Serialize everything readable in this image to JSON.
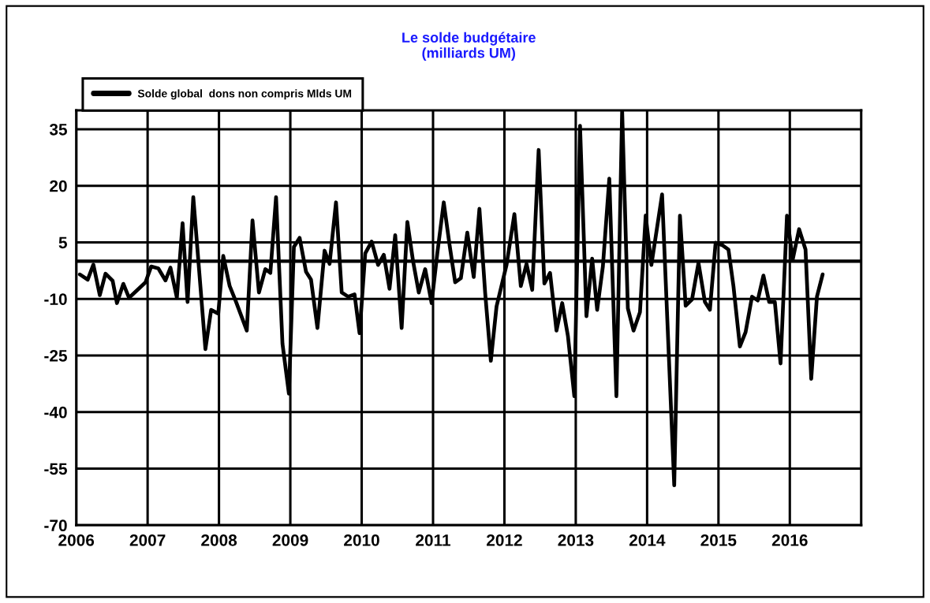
{
  "chart_data": {
    "type": "line",
    "title": "Le solde budgétaire\n(milliards UM)",
    "x": [
      2006.05,
      2006.16,
      2006.24,
      2006.33,
      2006.41,
      2006.51,
      2006.57,
      2006.66,
      2006.74,
      2006.97,
      2007.05,
      2007.15,
      2007.25,
      2007.32,
      2007.41,
      2007.49,
      2007.56,
      2007.64,
      2007.81,
      2007.89,
      2007.99,
      2008.06,
      2008.15,
      2008.24,
      2008.39,
      2008.47,
      2008.56,
      2008.65,
      2008.72,
      2008.8,
      2008.89,
      2008.98,
      2009.05,
      2009.13,
      2009.22,
      2009.29,
      2009.38,
      2009.48,
      2009.55,
      2009.64,
      2009.72,
      2009.81,
      2009.9,
      2009.97,
      2010.05,
      2010.14,
      2010.23,
      2010.31,
      2010.39,
      2010.47,
      2010.56,
      2010.64,
      2010.72,
      2010.8,
      2010.89,
      2010.98,
      2011.06,
      2011.15,
      2011.23,
      2011.31,
      2011.39,
      2011.48,
      2011.57,
      2011.65,
      2011.73,
      2011.81,
      2011.89,
      2012.03,
      2012.14,
      2012.23,
      2012.31,
      2012.39,
      2012.48,
      2012.56,
      2012.64,
      2012.73,
      2012.81,
      2012.89,
      2012.98,
      2013.06,
      2013.15,
      2013.23,
      2013.3,
      2013.38,
      2013.47,
      2013.57,
      2013.65,
      2013.73,
      2013.81,
      2013.9,
      2013.98,
      2014.06,
      2014.21,
      2014.38,
      2014.46,
      2014.54,
      2014.63,
      2014.72,
      2014.81,
      2014.88,
      2014.96,
      2015.06,
      2015.14,
      2015.21,
      2015.3,
      2015.38,
      2015.47,
      2015.55,
      2015.63,
      2015.71,
      2015.79,
      2015.87,
      2015.96,
      2016.04,
      2016.13,
      2016.22,
      2016.3,
      2016.38,
      2016.46
    ],
    "series": [
      {
        "name": "Solde global  dons non compris Mlds UM",
        "color": "#000000",
        "values": [
          -3.5,
          -4.9,
          -0.9,
          -9.0,
          -3.3,
          -5.2,
          -11.1,
          -6.0,
          -9.7,
          -5.6,
          -1.4,
          -1.9,
          -5.1,
          -1.7,
          -9.7,
          10.1,
          -10.8,
          17,
          -23.3,
          -12.9,
          -13.9,
          1.4,
          -6.6,
          -10.8,
          -18.4,
          10.8,
          -8.3,
          -2.1,
          -3.1,
          17,
          -21.9,
          -35.1,
          3.8,
          6.2,
          -2.8,
          -4.9,
          -17.7,
          2.8,
          -0.7,
          15.6,
          -8.3,
          -9.4,
          -8.8,
          -19.1,
          2.1,
          5.2,
          -1.0,
          1.7,
          -7.3,
          6.9,
          -17.7,
          10.4,
          0.0,
          -8.3,
          -2.1,
          -11.1,
          2.1,
          15.6,
          4.5,
          -5.6,
          -4.5,
          7.6,
          -4.2,
          13.9,
          -8.3,
          -26.4,
          -12.0,
          -1.0,
          12.5,
          -6.6,
          -0.7,
          -7.6,
          29.5,
          -5.9,
          -3.1,
          -18.4,
          -11.1,
          -19.8,
          -35.8,
          35.9,
          -14.6,
          0.7,
          -12.9,
          -1.4,
          21.9,
          -35.8,
          40,
          -12.5,
          -18.4,
          -13.5,
          12.1,
          -1.0,
          17.7,
          -59.4,
          12.1,
          -11.8,
          -10.1,
          -0.4,
          -10.8,
          -12.9,
          4.9,
          4.2,
          3.1,
          -6.6,
          -22.6,
          -18.8,
          -9.4,
          -10.4,
          -3.8,
          -10.8,
          -10.8,
          -27.1,
          12.1,
          0.4,
          8.5,
          3.1,
          -31.2,
          -9.4,
          -3.5
        ]
      }
    ],
    "xlim": [
      2006,
      2017
    ],
    "xticks": [
      2006,
      2007,
      2008,
      2009,
      2010,
      2011,
      2012,
      2013,
      2014,
      2015,
      2016
    ],
    "ylim": [
      -70,
      40
    ],
    "yticks": [
      -70,
      -55,
      -40,
      -25,
      -10,
      5,
      20,
      35
    ],
    "ref_lines": [
      {
        "axis": "y",
        "value": 0,
        "color": "#000000"
      }
    ],
    "grid": true,
    "legend": "top left",
    "marker": "none",
    "line_style": "solid"
  }
}
